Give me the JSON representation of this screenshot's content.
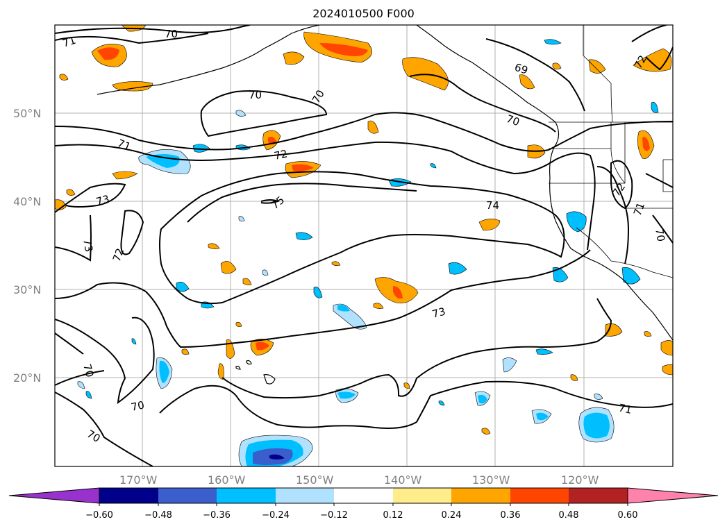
{
  "title": "2024010500 F000",
  "lat_labels": [
    "50°N",
    "40°N",
    "30°N",
    "20°N"
  ],
  "lon_labels": [
    "170°W",
    "160°W",
    "150°W",
    "140°W",
    "130°W",
    "120°W"
  ],
  "contour_labels": [
    "71",
    "70",
    "70",
    "70",
    "69",
    "70",
    "71",
    "72",
    "73",
    "75",
    "74",
    "73",
    "72",
    "71",
    "70",
    "70",
    "70",
    "70",
    "72",
    "71",
    "73",
    "72"
  ],
  "colorbar": {
    "ticks": [
      "−0.60",
      "−0.48",
      "−0.36",
      "−0.24",
      "−0.12",
      "0.12",
      "0.24",
      "0.36",
      "0.48",
      "0.60"
    ],
    "colors": [
      "#9932cc",
      "#00008b",
      "#3a5fcd",
      "#00bfff",
      "#b0e2ff",
      "#ffffff",
      "#ffec8b",
      "#ffa500",
      "#ff4500",
      "#b22222",
      "#ff82ab"
    ]
  },
  "colors": {
    "frame": "#000000",
    "grid": "#b0b0b0",
    "contour": "#000000"
  }
}
